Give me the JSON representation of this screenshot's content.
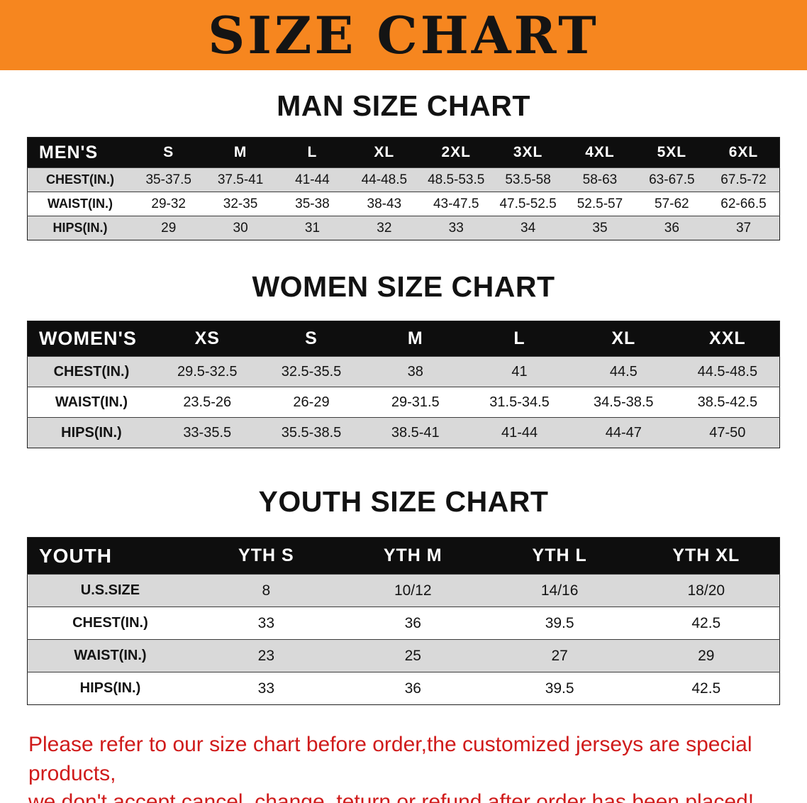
{
  "banner": {
    "title": "SIZE CHART"
  },
  "colors": {
    "banner_orange": "#f6861f",
    "table_header_black": "#0e0e0e",
    "stripe_gray": "#d9d9d9",
    "footer_red": "#d01b1b"
  },
  "men": {
    "heading": "MAN SIZE CHART",
    "table": {
      "header": [
        "MEN'S",
        "S",
        "M",
        "L",
        "XL",
        "2XL",
        "3XL",
        "4XL",
        "5XL",
        "6XL"
      ],
      "rows": [
        [
          "CHEST(IN.)",
          "35-37.5",
          "37.5-41",
          "41-44",
          "44-48.5",
          "48.5-53.5",
          "53.5-58",
          "58-63",
          "63-67.5",
          "67.5-72"
        ],
        [
          "WAIST(IN.)",
          "29-32",
          "32-35",
          "35-38",
          "38-43",
          "43-47.5",
          "47.5-52.5",
          "52.5-57",
          "57-62",
          "62-66.5"
        ],
        [
          "HIPS(IN.)",
          "29",
          "30",
          "31",
          "32",
          "33",
          "34",
          "35",
          "36",
          "37"
        ]
      ]
    }
  },
  "women": {
    "heading": "WOMEN SIZE CHART",
    "table": {
      "header": [
        "WOMEN'S",
        "XS",
        "S",
        "M",
        "L",
        "XL",
        "XXL"
      ],
      "rows": [
        [
          "CHEST(IN.)",
          "29.5-32.5",
          "32.5-35.5",
          "38",
          "41",
          "44.5",
          "44.5-48.5"
        ],
        [
          "WAIST(IN.)",
          "23.5-26",
          "26-29",
          "29-31.5",
          "31.5-34.5",
          "34.5-38.5",
          "38.5-42.5"
        ],
        [
          "HIPS(IN.)",
          "33-35.5",
          "35.5-38.5",
          "38.5-41",
          "41-44",
          "44-47",
          "47-50"
        ]
      ]
    }
  },
  "youth": {
    "heading": "YOUTH SIZE CHART",
    "table": {
      "header": [
        "YOUTH",
        "YTH S",
        "YTH M",
        "YTH L",
        "YTH XL"
      ],
      "rows": [
        [
          "U.S.SIZE",
          "8",
          "10/12",
          "14/16",
          "18/20"
        ],
        [
          "CHEST(IN.)",
          "33",
          "36",
          "39.5",
          "42.5"
        ],
        [
          "WAIST(IN.)",
          "23",
          "25",
          "27",
          "29"
        ],
        [
          "HIPS(IN.)",
          "33",
          "36",
          "39.5",
          "42.5"
        ]
      ]
    }
  },
  "footer": {
    "line1": "Please refer to our size chart before order,the customized jerseys are special products,",
    "line2": "we don't accept cancel, change, teturn or refund after order has been placed!"
  }
}
